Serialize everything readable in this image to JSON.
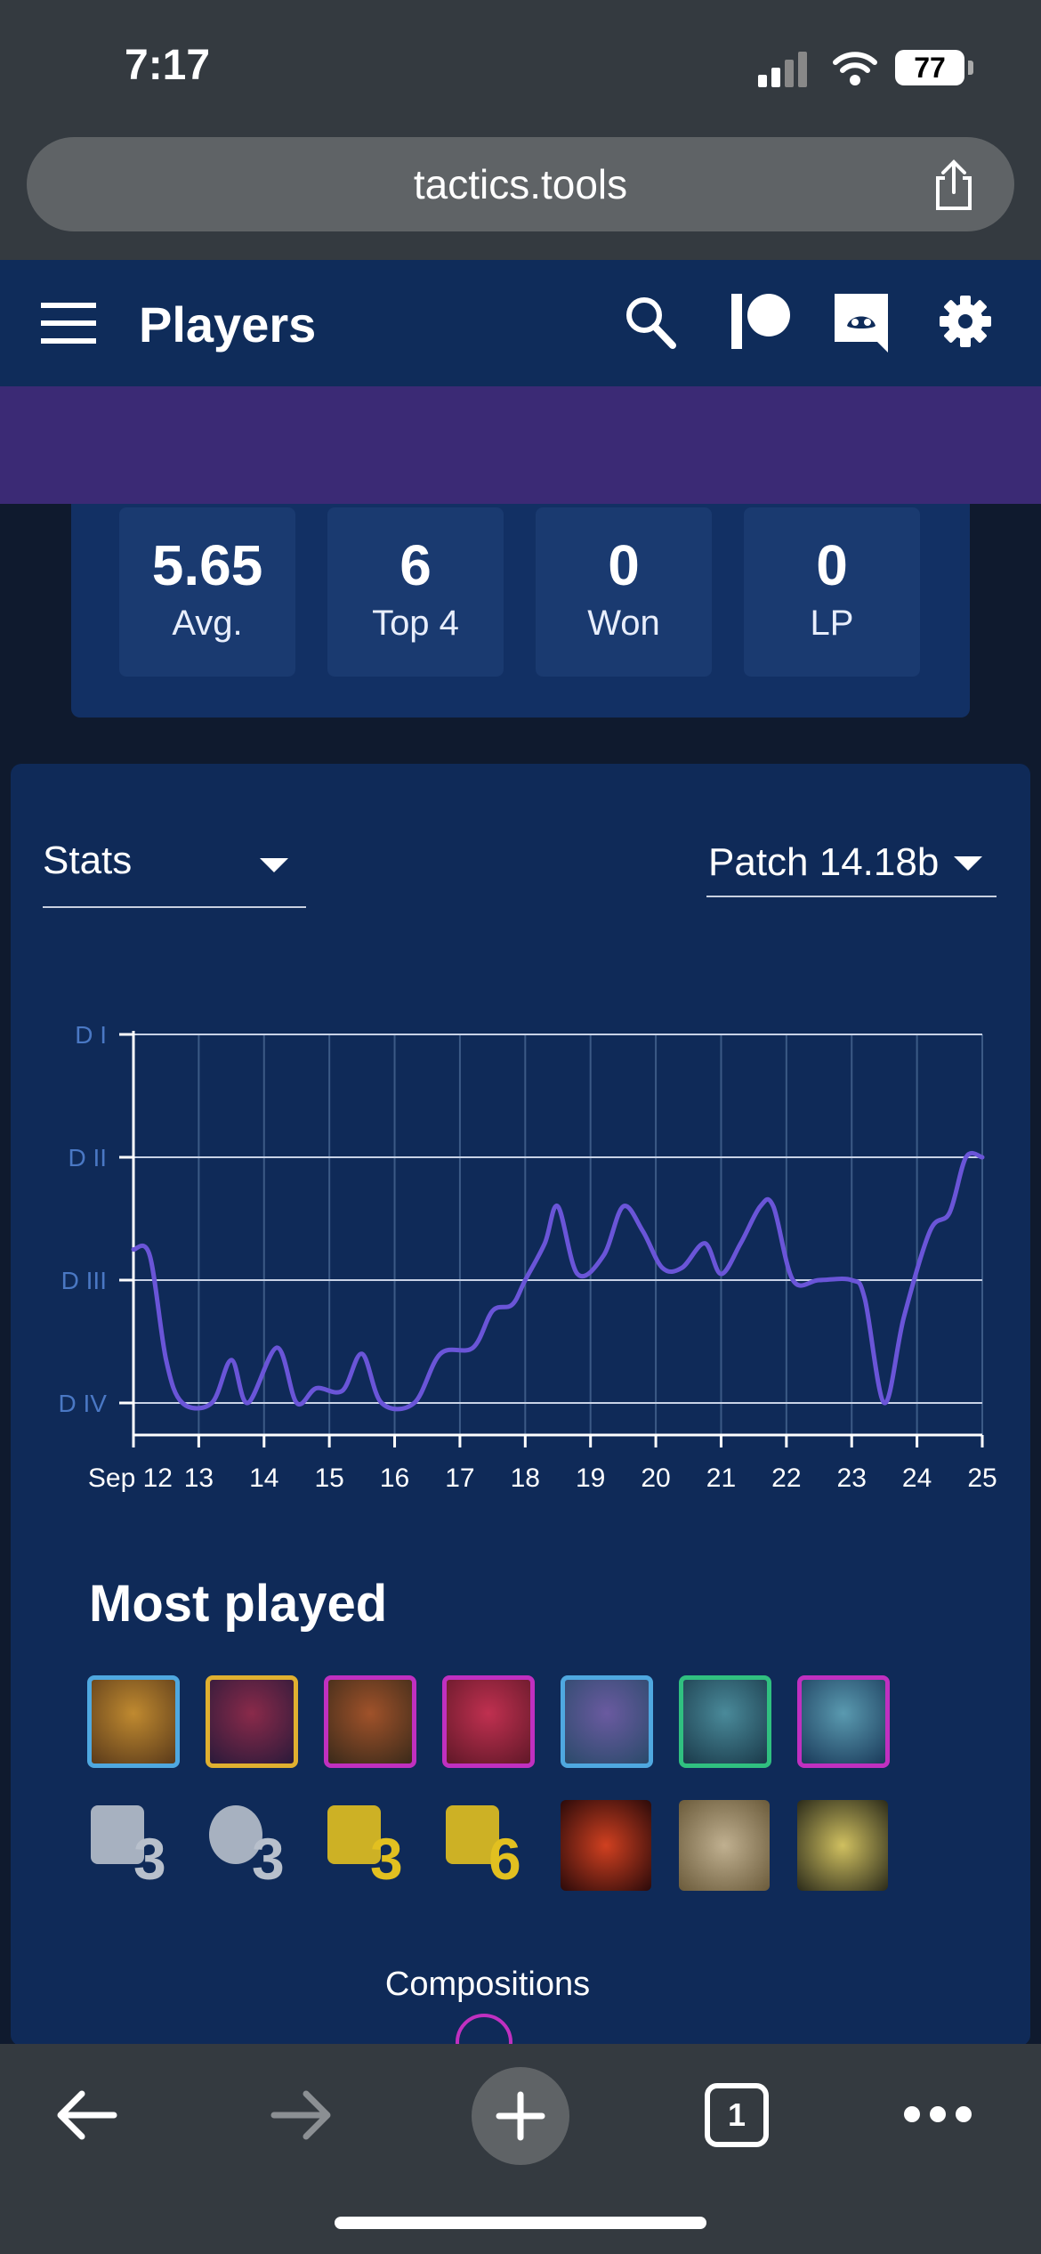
{
  "status_bar": {
    "time": "7:17",
    "battery": "77"
  },
  "browser": {
    "url": "tactics.tools",
    "tab_count": "1"
  },
  "header": {
    "title": "Players"
  },
  "stats": [
    {
      "value": "5.65",
      "label": "Avg."
    },
    {
      "value": "6",
      "label": "Top 4"
    },
    {
      "value": "0",
      "label": "Won"
    },
    {
      "value": "0",
      "label": "LP"
    }
  ],
  "filters": {
    "stats_select": "Stats",
    "patch_select": "Patch 14.18b"
  },
  "chart_data": {
    "type": "line",
    "y_categories": [
      "D IV",
      "D III",
      "D II",
      "D I"
    ],
    "x_tick_labels": [
      "Sep 12",
      "13",
      "14",
      "15",
      "16",
      "17",
      "18",
      "19",
      "20",
      "21",
      "22",
      "23",
      "24",
      "25"
    ],
    "x_range": [
      12,
      25
    ],
    "y_range": [
      0,
      3
    ],
    "grid": true,
    "series_color": "#6a55d8",
    "points": [
      [
        12.0,
        1.25
      ],
      [
        12.25,
        1.2
      ],
      [
        12.5,
        0.35
      ],
      [
        12.75,
        0.0
      ],
      [
        13.2,
        0.0
      ],
      [
        13.5,
        0.35
      ],
      [
        13.75,
        0.0
      ],
      [
        14.2,
        0.45
      ],
      [
        14.5,
        0.0
      ],
      [
        14.8,
        0.12
      ],
      [
        15.2,
        0.1
      ],
      [
        15.5,
        0.4
      ],
      [
        15.8,
        0.0
      ],
      [
        16.3,
        0.0
      ],
      [
        16.7,
        0.4
      ],
      [
        17.2,
        0.45
      ],
      [
        17.5,
        0.75
      ],
      [
        17.8,
        0.8
      ],
      [
        18.0,
        1.0
      ],
      [
        18.3,
        1.3
      ],
      [
        18.5,
        1.6
      ],
      [
        18.8,
        1.05
      ],
      [
        19.2,
        1.2
      ],
      [
        19.5,
        1.6
      ],
      [
        19.8,
        1.4
      ],
      [
        20.1,
        1.1
      ],
      [
        20.4,
        1.1
      ],
      [
        20.75,
        1.3
      ],
      [
        21.0,
        1.05
      ],
      [
        21.3,
        1.3
      ],
      [
        21.6,
        1.6
      ],
      [
        21.8,
        1.6
      ],
      [
        22.1,
        1.0
      ],
      [
        22.5,
        1.0
      ],
      [
        23.0,
        1.0
      ],
      [
        23.2,
        0.85
      ],
      [
        23.5,
        0.0
      ],
      [
        23.8,
        0.7
      ],
      [
        24.2,
        1.4
      ],
      [
        24.5,
        1.55
      ],
      [
        24.75,
        2.0
      ],
      [
        25.0,
        2.0
      ]
    ]
  },
  "most_played": {
    "title": "Most played",
    "champion_icons": [
      "champion-1-icon",
      "champion-2-icon",
      "champion-3-icon",
      "champion-4-icon",
      "champion-5-icon",
      "champion-6-icon",
      "champion-7-icon"
    ],
    "champion_border_colors": [
      "#4fa8e0",
      "#e0b030",
      "#c030c0",
      "#c030c0",
      "#4fa8e0",
      "#30c080",
      "#c030c0"
    ],
    "traits": [
      {
        "icon": "trait-sparkle-icon",
        "count": "3",
        "color": "#b8c0cc"
      },
      {
        "icon": "trait-time-icon",
        "count": "3",
        "color": "#b8c0cc"
      },
      {
        "icon": "trait-dragon-icon",
        "count": "3",
        "color": "#e2c020"
      },
      {
        "icon": "trait-figure-icon",
        "count": "6",
        "color": "#e2c020"
      }
    ],
    "item_icons": [
      "item-red-sword-icon",
      "item-armor-icon",
      "item-lightning-blade-icon"
    ]
  },
  "compositions_label": "Compositions"
}
